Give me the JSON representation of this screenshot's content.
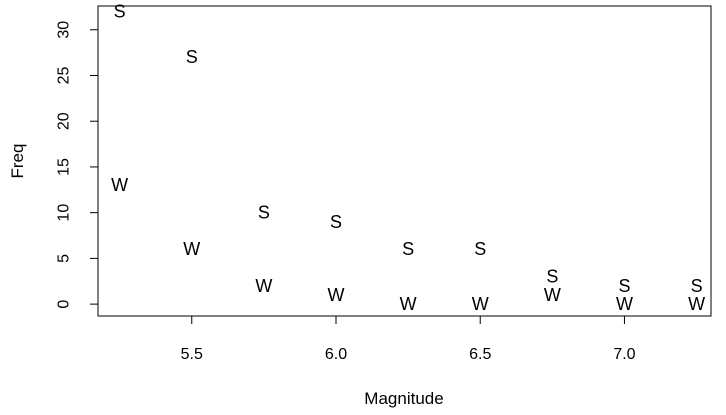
{
  "chart_data": {
    "type": "scatter",
    "xlabel": "Magnitude",
    "ylabel": "Freq",
    "xlim": [
      5.175,
      7.3
    ],
    "ylim": [
      -1.3,
      32.6
    ],
    "x_ticks": [
      5.5,
      6.0,
      6.5,
      7.0
    ],
    "x_tick_labels": [
      "5.5",
      "6.0",
      "6.5",
      "7.0"
    ],
    "y_ticks": [
      0,
      5,
      10,
      15,
      20,
      25,
      30
    ],
    "y_tick_labels": [
      "0",
      "5",
      "10",
      "15",
      "20",
      "25",
      "30"
    ],
    "grid": false,
    "legend": "none",
    "x": [
      5.25,
      5.5,
      5.75,
      6.0,
      6.25,
      6.5,
      6.75,
      7.0,
      7.25
    ],
    "series": [
      {
        "marker": "S",
        "values": [
          32,
          27,
          10,
          9,
          6,
          6,
          3,
          2,
          2
        ]
      },
      {
        "marker": "W",
        "values": [
          13,
          6,
          2,
          1,
          0,
          0,
          1,
          0,
          0
        ]
      }
    ]
  }
}
